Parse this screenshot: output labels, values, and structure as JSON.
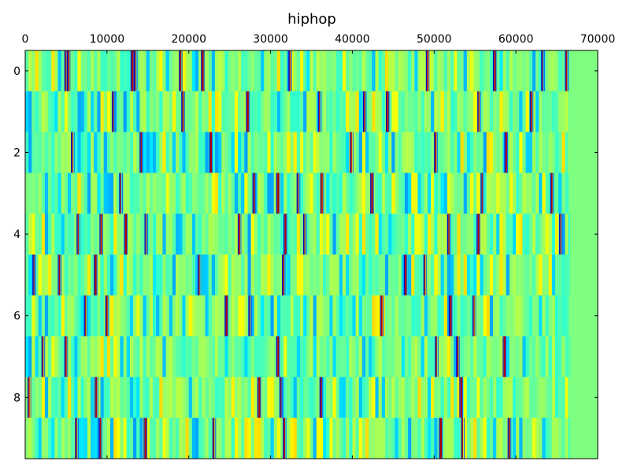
{
  "chart_data": {
    "type": "heatmap",
    "title": "hiphop",
    "xlabel": "",
    "ylabel": "",
    "x_axis_position": "top",
    "xlim": [
      0,
      70000
    ],
    "ylim": [
      -0.5,
      9.5
    ],
    "y_inverted": true,
    "x_ticks": [
      0,
      10000,
      20000,
      30000,
      40000,
      50000,
      60000,
      70000
    ],
    "x_tick_labels": [
      "0",
      "10000",
      "20000",
      "30000",
      "40000",
      "50000",
      "60000",
      "70000"
    ],
    "y_ticks": [
      0,
      2,
      4,
      6,
      8
    ],
    "y_tick_labels": [
      "0",
      "2",
      "4",
      "6",
      "8"
    ],
    "grid": false,
    "legend": "none",
    "colormap": "jet",
    "background_color": "#7fff7f",
    "rows": [
      {
        "row": 0,
        "length": 66700,
        "strong_stripes": [
          5000,
          5300,
          13100,
          13500,
          19000,
          21700,
          32400,
          49200,
          57400,
          63300,
          66200
        ]
      },
      {
        "row": 1,
        "length": 66500,
        "strong_stripes": [
          10800,
          19300,
          27200,
          36000,
          41500,
          44300,
          55500,
          61900
        ]
      },
      {
        "row": 2,
        "length": 66500,
        "strong_stripes": [
          5800,
          14200,
          22700,
          39900,
          50200,
          58800
        ]
      },
      {
        "row": 3,
        "length": 66400,
        "strong_stripes": [
          11700,
          28000,
          30900,
          33400,
          36300,
          42400,
          55900,
          64400
        ]
      },
      {
        "row": 4,
        "length": 66600,
        "strong_stripes": [
          6500,
          9300,
          12300,
          14800,
          26200,
          31800,
          34200,
          51800,
          55400,
          65500
        ]
      },
      {
        "row": 5,
        "length": 66600,
        "strong_stripes": [
          1100,
          4200,
          8600,
          21300,
          31600,
          46500,
          48900
        ]
      },
      {
        "row": 6,
        "length": 66400,
        "strong_stripes": [
          7400,
          10000,
          24600,
          27500,
          43600,
          52000,
          54900
        ]
      },
      {
        "row": 7,
        "length": 66700,
        "strong_stripes": [
          2200,
          5000,
          30900,
          50300,
          52900,
          58600
        ]
      },
      {
        "row": 8,
        "length": 66500,
        "strong_stripes": [
          500,
          8700,
          28600,
          31300,
          36200,
          53300
        ]
      },
      {
        "row": 9,
        "length": 66600,
        "strong_stripes": [
          6300,
          9200,
          14700,
          23100,
          31700,
          50800,
          53500,
          59200
        ]
      }
    ]
  }
}
